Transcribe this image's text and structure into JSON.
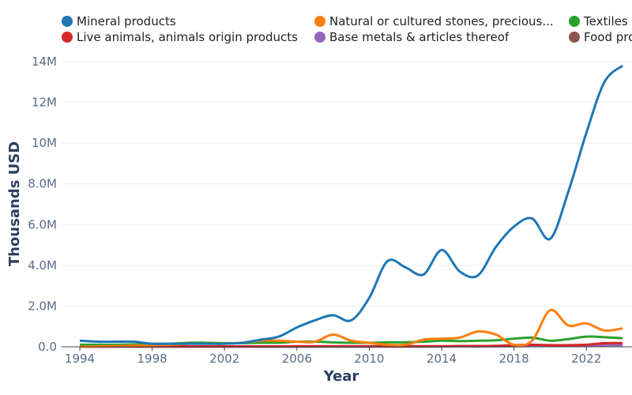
{
  "chart_data": {
    "type": "line",
    "xlabel": "Year",
    "ylabel": "Thousands USD",
    "xlim": [
      1994,
      2024
    ],
    "ylim": [
      0,
      14000000
    ],
    "x_ticks": [
      "1994",
      "1998",
      "2002",
      "2006",
      "2010",
      "2014",
      "2018",
      "2022"
    ],
    "y_ticks": [
      "0.0",
      "2.0M",
      "4.0M",
      "6.0M",
      "8.0M",
      "10M",
      "12M",
      "14M"
    ],
    "legend_position": "top",
    "x": [
      1994,
      1995,
      1996,
      1997,
      1998,
      1999,
      2000,
      2001,
      2002,
      2003,
      2004,
      2005,
      2006,
      2007,
      2008,
      2009,
      2010,
      2011,
      2012,
      2013,
      2014,
      2015,
      2016,
      2017,
      2018,
      2019,
      2020,
      2021,
      2022,
      2023,
      2024
    ],
    "series": [
      {
        "name": "Mineral products",
        "color": "#1f77b4",
        "values": [
          300000,
          250000,
          250000,
          250000,
          150000,
          150000,
          150000,
          150000,
          150000,
          200000,
          350000,
          500000,
          950000,
          1300000,
          1550000,
          1300000,
          2400000,
          4200000,
          3900000,
          3550000,
          4750000,
          3700000,
          3500000,
          4900000,
          5900000,
          6300000,
          5300000,
          7600000,
          10500000,
          13000000,
          13800000
        ]
      },
      {
        "name": "Natural or cultured stones, precious...",
        "color": "#ff7f0e",
        "values": [
          0,
          20000,
          40000,
          60000,
          80000,
          100000,
          150000,
          150000,
          150000,
          200000,
          300000,
          300000,
          250000,
          250000,
          600000,
          300000,
          200000,
          100000,
          100000,
          350000,
          400000,
          450000,
          750000,
          600000,
          100000,
          300000,
          1800000,
          1050000,
          1150000,
          800000,
          900000
        ]
      },
      {
        "name": "Textiles",
        "color": "#2ca02c",
        "values": [
          100000,
          100000,
          100000,
          120000,
          150000,
          150000,
          200000,
          200000,
          180000,
          180000,
          200000,
          200000,
          250000,
          250000,
          220000,
          200000,
          200000,
          220000,
          220000,
          250000,
          300000,
          280000,
          300000,
          320000,
          400000,
          450000,
          300000,
          380000,
          500000,
          470000,
          420000
        ]
      },
      {
        "name": "Live animals, animals origin products",
        "color": "#d62728",
        "values": [
          10000,
          10000,
          20000,
          20000,
          20000,
          20000,
          20000,
          20000,
          20000,
          20000,
          20000,
          20000,
          30000,
          30000,
          30000,
          30000,
          30000,
          30000,
          30000,
          30000,
          30000,
          40000,
          40000,
          50000,
          80000,
          100000,
          80000,
          80000,
          100000,
          180000,
          180000
        ]
      },
      {
        "name": "Base metals & articles thereof",
        "color": "#9467bd",
        "values": [
          10000,
          10000,
          10000,
          10000,
          10000,
          10000,
          10000,
          10000,
          10000,
          10000,
          10000,
          10000,
          10000,
          20000,
          20000,
          20000,
          20000,
          20000,
          20000,
          20000,
          20000,
          20000,
          30000,
          30000,
          40000,
          50000,
          50000,
          60000,
          70000,
          80000,
          80000
        ]
      },
      {
        "name": "Food products",
        "color": "#8c564b",
        "values": [
          10000,
          10000,
          10000,
          10000,
          10000,
          10000,
          10000,
          10000,
          10000,
          10000,
          10000,
          10000,
          10000,
          10000,
          10000,
          10000,
          10000,
          10000,
          10000,
          10000,
          20000,
          20000,
          20000,
          30000,
          30000,
          40000,
          40000,
          40000,
          50000,
          120000,
          120000
        ]
      }
    ]
  }
}
